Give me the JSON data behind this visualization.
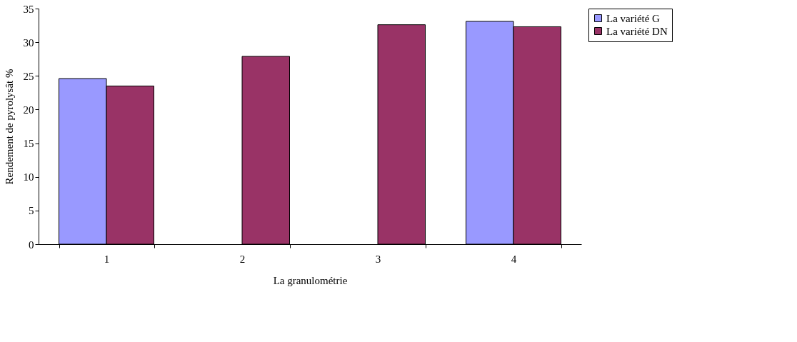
{
  "chart_data": {
    "type": "bar",
    "xlabel": "La granulométrie",
    "ylabel": "Rendement de pyrolysât %",
    "categories": [
      "1",
      "2",
      "3",
      "4"
    ],
    "series": [
      {
        "name": "La variété G",
        "color": "#9999ff",
        "values": [
          24.6,
          null,
          null,
          33.1
        ]
      },
      {
        "name": "La variété DN",
        "color": "#993366",
        "values": [
          23.5,
          27.9,
          32.6,
          32.3
        ]
      }
    ],
    "ylim": [
      0,
      35
    ],
    "yticks": [
      0,
      5,
      10,
      15,
      20,
      25,
      30,
      35
    ],
    "grid": false,
    "legend": "top right"
  }
}
